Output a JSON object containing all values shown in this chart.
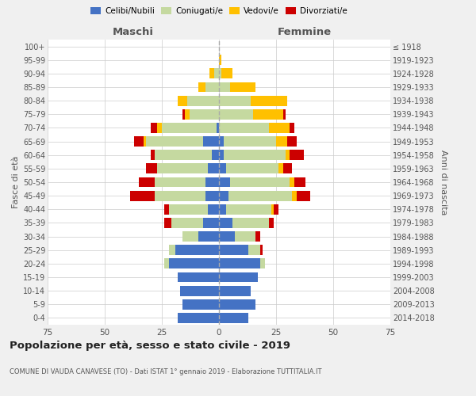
{
  "age_groups": [
    "0-4",
    "5-9",
    "10-14",
    "15-19",
    "20-24",
    "25-29",
    "30-34",
    "35-39",
    "40-44",
    "45-49",
    "50-54",
    "55-59",
    "60-64",
    "65-69",
    "70-74",
    "75-79",
    "80-84",
    "85-89",
    "90-94",
    "95-99",
    "100+"
  ],
  "birth_years": [
    "2014-2018",
    "2009-2013",
    "2004-2008",
    "1999-2003",
    "1994-1998",
    "1989-1993",
    "1984-1988",
    "1979-1983",
    "1974-1978",
    "1969-1973",
    "1964-1968",
    "1959-1963",
    "1954-1958",
    "1949-1953",
    "1944-1948",
    "1939-1943",
    "1934-1938",
    "1929-1933",
    "1924-1928",
    "1919-1923",
    "≤ 1918"
  ],
  "maschi": {
    "celibi": [
      18,
      16,
      17,
      18,
      22,
      19,
      9,
      7,
      5,
      6,
      6,
      5,
      3,
      7,
      1,
      0,
      0,
      0,
      0,
      0,
      0
    ],
    "coniugati": [
      0,
      0,
      0,
      0,
      2,
      3,
      7,
      14,
      17,
      22,
      22,
      22,
      25,
      25,
      24,
      13,
      14,
      6,
      2,
      0,
      0
    ],
    "vedovi": [
      0,
      0,
      0,
      0,
      0,
      0,
      0,
      0,
      0,
      0,
      0,
      0,
      0,
      1,
      2,
      2,
      4,
      3,
      2,
      0,
      0
    ],
    "divorziati": [
      0,
      0,
      0,
      0,
      0,
      0,
      0,
      3,
      2,
      11,
      7,
      5,
      2,
      4,
      3,
      1,
      0,
      0,
      0,
      0,
      0
    ]
  },
  "femmine": {
    "nubili": [
      13,
      16,
      14,
      17,
      18,
      13,
      7,
      6,
      3,
      4,
      5,
      3,
      2,
      2,
      0,
      0,
      0,
      0,
      0,
      0,
      0
    ],
    "coniugate": [
      0,
      0,
      0,
      0,
      2,
      5,
      9,
      16,
      20,
      28,
      26,
      23,
      27,
      23,
      22,
      15,
      14,
      5,
      1,
      0,
      0
    ],
    "vedove": [
      0,
      0,
      0,
      0,
      0,
      0,
      0,
      0,
      1,
      2,
      2,
      2,
      2,
      5,
      9,
      13,
      16,
      11,
      5,
      1,
      0
    ],
    "divorziate": [
      0,
      0,
      0,
      0,
      0,
      1,
      2,
      2,
      2,
      6,
      5,
      4,
      6,
      4,
      2,
      1,
      0,
      0,
      0,
      0,
      0
    ]
  },
  "colors": {
    "celibi": "#4472c4",
    "coniugati": "#c5d9a0",
    "vedovi": "#ffc000",
    "divorziati": "#cc0000"
  },
  "title": "Popolazione per età, sesso e stato civile - 2019",
  "subtitle": "COMUNE DI VAUDA CANAVESE (TO) - Dati ISTAT 1° gennaio 2019 - Elaborazione TUTTITALIA.IT",
  "xlabel_left": "Maschi",
  "xlabel_right": "Femmine",
  "ylabel_left": "Fasce di età",
  "ylabel_right": "Anni di nascita",
  "xlim": 75,
  "legend_labels": [
    "Celibi/Nubili",
    "Coniugati/e",
    "Vedovi/e",
    "Divorziati/e"
  ],
  "bg_color": "#f0f0f0",
  "plot_bg_color": "#ffffff"
}
